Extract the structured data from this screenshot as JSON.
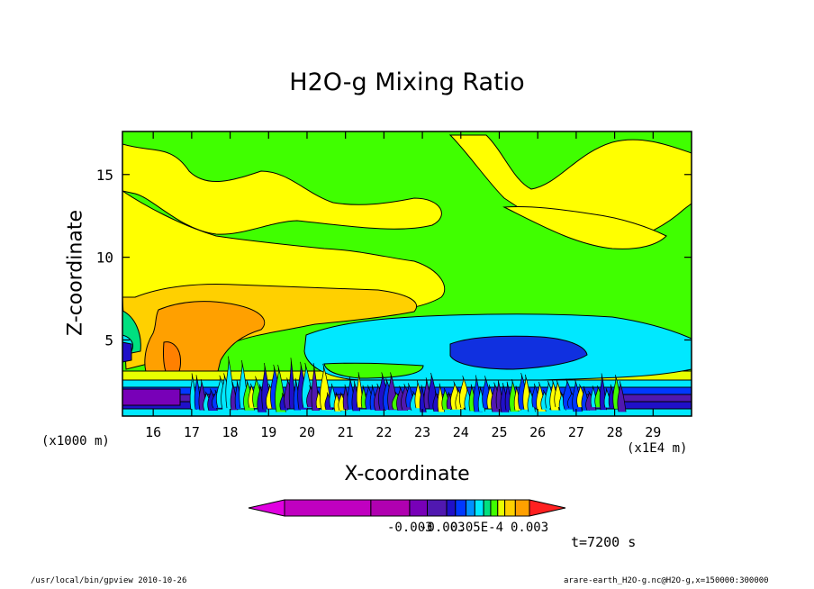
{
  "chart_data": {
    "type": "heatmap",
    "title": "H2O-g Mixing Ratio",
    "xlabel": "X-coordinate",
    "ylabel": "Z-coordinate",
    "x_unit": "(x1E4 m)",
    "y_unit": "(x1000 m)",
    "xlim": [
      15.2,
      30.0
    ],
    "ylim": [
      0.4,
      17.6
    ],
    "x_ticks": [
      "16",
      "17",
      "18",
      "19",
      "20",
      "21",
      "22",
      "23",
      "24",
      "25",
      "26",
      "27",
      "28",
      "29"
    ],
    "y_ticks": [
      "5",
      "10",
      "15"
    ],
    "colorbar": {
      "colors": [
        "#c000c0",
        "#b000b0",
        "#7800b8",
        "#5018b0",
        "#2010c8",
        "#0038ff",
        "#0090ff",
        "#00e8ff",
        "#00e080",
        "#40ff00",
        "#e8ff00",
        "#ffd000",
        "#ffa000",
        "#ff6000",
        "#ff2020"
      ],
      "tick_labels": [
        "-0.003",
        "-0.003",
        "0.05E-4",
        "0.003"
      ]
    }
  },
  "annotation": {
    "time": "t=7200 s"
  },
  "footer": {
    "left": "/usr/local/bin/gpview  2010-10-26",
    "right": "arare-earth_H2O-g.nc@H2O-g,x=150000:300000"
  }
}
